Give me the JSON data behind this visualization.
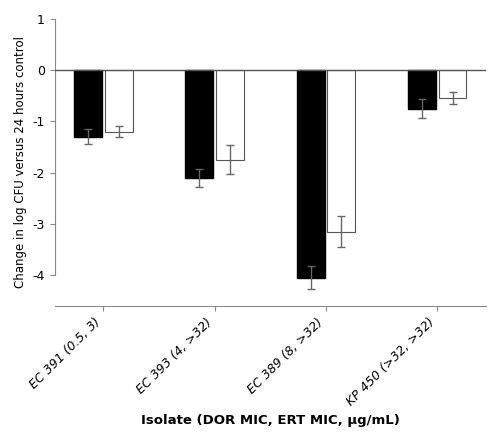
{
  "categories": [
    "EC 391 (0.5, 3)",
    "EC 393 (4, >32)",
    "EC 389 (8, >32)",
    "KP 450 (>32, >32)"
  ],
  "dor_values": [
    -1.3,
    -2.1,
    -4.05,
    -0.75
  ],
  "ert_values": [
    -1.2,
    -1.75,
    -3.15,
    -0.55
  ],
  "dor_errors": [
    0.15,
    0.18,
    0.22,
    0.18
  ],
  "ert_errors": [
    0.1,
    0.28,
    0.3,
    0.12
  ],
  "bar_width": 0.25,
  "ylim": [
    -4.6,
    1.0
  ],
  "yticks": [
    1,
    0,
    -1,
    -2,
    -3,
    -4
  ],
  "xlabel": "Isolate (DOR MIC, ERT MIC, μg/mL)",
  "ylabel": "Change in log CFU versus 24 hours control",
  "dor_color": "#000000",
  "ert_color": "white",
  "ert_edgecolor": "#555555",
  "hline_color": "#555555",
  "hline_lw": 1.0,
  "error_color": "#666666",
  "error_lw": 1.0,
  "error_capsize": 3,
  "xlabel_fontsize": 9.5,
  "ylabel_fontsize": 8.5,
  "tick_fontsize": 9,
  "cat_fontsize": 9
}
